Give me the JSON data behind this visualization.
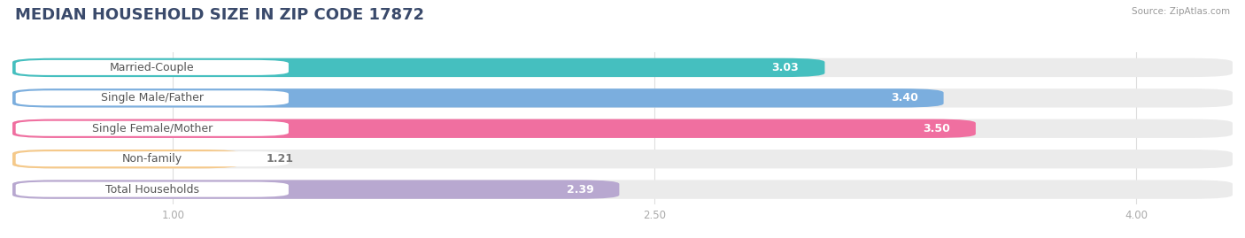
{
  "title": "MEDIAN HOUSEHOLD SIZE IN ZIP CODE 17872",
  "source": "Source: ZipAtlas.com",
  "categories": [
    "Married-Couple",
    "Single Male/Father",
    "Single Female/Mother",
    "Non-family",
    "Total Households"
  ],
  "values": [
    3.03,
    3.4,
    3.5,
    1.21,
    2.39
  ],
  "bar_colors": [
    "#45bfbf",
    "#7baede",
    "#f06fa0",
    "#f5c98a",
    "#b8a8d0"
  ],
  "label_text_colors": [
    "#555555",
    "#555555",
    "#555555",
    "#888855",
    "#555555"
  ],
  "xlim_min": 0.5,
  "xlim_max": 4.3,
  "xstart": 0.5,
  "xticks": [
    1.0,
    2.5,
    4.0
  ],
  "background_color": "#ffffff",
  "bar_bg_color": "#f0f0f0",
  "title_fontsize": 13,
  "label_fontsize": 9,
  "value_fontsize": 9,
  "bar_height": 0.62,
  "title_color": "#3a4a6b",
  "source_color": "#999999"
}
